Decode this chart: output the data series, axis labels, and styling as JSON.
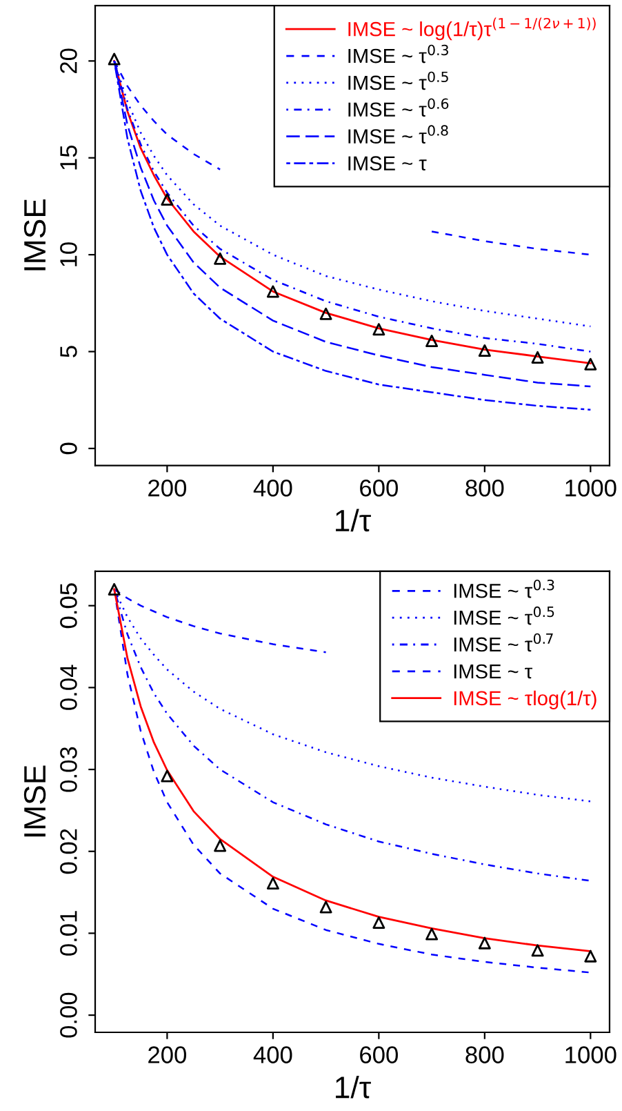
{
  "chart_data": [
    {
      "type": "line",
      "xlabel": "1/τ",
      "ylabel": "IMSE",
      "xlim": [
        64,
        1036
      ],
      "ylim": [
        -0.88,
        22.86
      ],
      "xticks": [
        200,
        400,
        600,
        800,
        1000
      ],
      "yticks": [
        0,
        5,
        10,
        15,
        20
      ],
      "grid": false,
      "legend": "top right",
      "x": [
        100,
        125,
        150,
        175,
        200,
        250,
        300,
        400,
        500,
        600,
        700,
        800,
        900,
        1000
      ],
      "series": [
        {
          "name": "IMSE ~ log(1/τ)τ$^{(1−1/(2ν+1))}$",
          "color": "#ff0000",
          "line_style": "solid",
          "values": [
            20,
            17.4,
            15.5,
            14.1,
            12.9,
            11.2,
            9.9,
            8.1,
            7.0,
            6.2,
            5.6,
            5.1,
            4.75,
            4.4
          ]
        },
        {
          "name": "IMSE ~ τ$^{0.3}$",
          "color": "#0000ff",
          "line_style": "dashed",
          "values": [
            20,
            18.7,
            17.7,
            16.9,
            16.2,
            15.2,
            14.4,
            null,
            null,
            null,
            11.2,
            10.7,
            10.3,
            10.0
          ]
        },
        {
          "name": "IMSE ~ τ$^{0.5}$",
          "color": "#0000ff",
          "line_style": "dotted",
          "values": [
            20,
            17.9,
            16.3,
            15.1,
            14.1,
            12.6,
            11.5,
            10.0,
            8.9,
            8.2,
            7.6,
            7.1,
            6.7,
            6.3
          ]
        },
        {
          "name": "IMSE ~ τ$^{0.6}$",
          "color": "#0000ff",
          "line_style": "dashdot",
          "values": [
            20,
            17.5,
            15.7,
            14.3,
            13.2,
            11.5,
            10.3,
            8.7,
            7.6,
            6.8,
            6.2,
            5.7,
            5.4,
            5.0
          ]
        },
        {
          "name": "IMSE ~ τ$^{0.8}$",
          "color": "#0000ff",
          "line_style": "longdash",
          "values": [
            20,
            16.7,
            14.5,
            12.8,
            11.5,
            9.6,
            8.3,
            6.6,
            5.5,
            4.8,
            4.2,
            3.8,
            3.4,
            3.2
          ]
        },
        {
          "name": "IMSE ~ τ",
          "color": "#0000ff",
          "line_style": "twodash",
          "values": [
            20,
            16,
            13.3,
            11.4,
            10,
            8,
            6.7,
            5,
            4,
            3.3,
            2.9,
            2.5,
            2.2,
            2.0
          ]
        },
        {
          "type": "scatter",
          "color": "#000000",
          "marker": "triangle",
          "x": [
            100,
            200,
            300,
            400,
            500,
            600,
            700,
            800,
            900,
            1000
          ],
          "values": [
            20.1,
            12.85,
            9.8,
            8.1,
            6.95,
            6.15,
            5.55,
            5.05,
            4.7,
            4.35
          ]
        }
      ]
    },
    {
      "type": "line",
      "xlabel": "1/τ",
      "ylabel": "IMSE",
      "xlim": [
        64,
        1036
      ],
      "ylim": [
        -0.0021,
        0.0542
      ],
      "xticks": [
        200,
        400,
        600,
        800,
        1000
      ],
      "yticks": [
        {
          "value": 0,
          "label": "0.00"
        },
        {
          "value": 0.01,
          "label": "0.01"
        },
        {
          "value": 0.02,
          "label": "0.02"
        },
        {
          "value": 0.03,
          "label": "0.03"
        },
        {
          "value": 0.04,
          "label": "0.04"
        },
        {
          "value": 0.05,
          "label": "0.05"
        }
      ],
      "grid": false,
      "legend": "top right",
      "x": [
        100,
        125,
        150,
        175,
        200,
        250,
        300,
        400,
        500,
        600,
        700,
        800,
        900,
        1000
      ],
      "series": [
        {
          "name": "IMSE ~ τ$^{0.3}$",
          "color": "#0000ff",
          "line_style": "dashed",
          "values": [
            0.052,
            0.0509,
            0.05,
            0.0493,
            0.0486,
            0.0475,
            0.0466,
            0.0453,
            0.0443,
            null,
            null,
            null,
            null,
            null
          ]
        },
        {
          "name": "IMSE ~ τ$^{0.5}$",
          "color": "#0000ff",
          "line_style": "dotted",
          "values": [
            0.052,
            0.0486,
            0.046,
            0.044,
            0.0422,
            0.0395,
            0.0374,
            0.0343,
            0.0321,
            0.0304,
            0.029,
            0.0279,
            0.0269,
            0.0261
          ]
        },
        {
          "name": "IMSE ~ τ$^{0.7}$",
          "color": "#0000ff",
          "line_style": "dashdot",
          "values": [
            0.052,
            0.0465,
            0.0425,
            0.0393,
            0.0368,
            0.0329,
            0.03,
            0.026,
            0.0233,
            0.0212,
            0.0197,
            0.0184,
            0.0173,
            0.0164
          ]
        },
        {
          "name": "IMSE ~ τ",
          "color": "#0000ff",
          "line_style": "dashed",
          "values": [
            0.052,
            0.0416,
            0.0347,
            0.0297,
            0.026,
            0.0208,
            0.0173,
            0.013,
            0.0104,
            0.0087,
            0.0074,
            0.0065,
            0.0058,
            0.0052
          ]
        },
        {
          "name": "IMSE ~ τlog(1/τ)",
          "color": "#ff0000",
          "line_style": "solid",
          "values": [
            0.052,
            0.0436,
            0.0377,
            0.0333,
            0.0299,
            0.0249,
            0.0215,
            0.0169,
            0.014,
            0.012,
            0.0106,
            0.0094,
            0.0085,
            0.0078
          ]
        },
        {
          "type": "scatter",
          "color": "#000000",
          "marker": "triangle",
          "x": [
            100,
            200,
            300,
            400,
            500,
            600,
            700,
            800,
            900,
            1000
          ],
          "values": [
            0.052,
            0.0292,
            0.0207,
            0.0161,
            0.0132,
            0.0113,
            0.0099,
            0.0088,
            0.0079,
            0.0072
          ]
        }
      ]
    }
  ]
}
